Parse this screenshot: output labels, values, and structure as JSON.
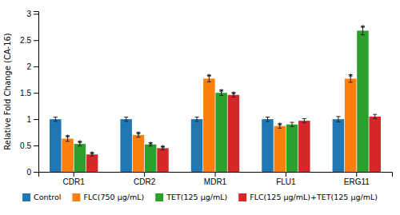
{
  "chart_data": {
    "type": "bar",
    "categories": [
      "CDR1",
      "CDR2",
      "MDR1",
      "FLU1",
      "ERG11"
    ],
    "series": [
      {
        "name": "Control",
        "values": [
          1.0,
          1.0,
          1.0,
          1.0,
          1.0
        ],
        "errors": [
          0.04,
          0.04,
          0.04,
          0.04,
          0.05
        ]
      },
      {
        "name": "FLC(750 μg/mL)",
        "values": [
          0.63,
          0.7,
          1.77,
          0.87,
          1.77
        ],
        "errors": [
          0.05,
          0.04,
          0.06,
          0.04,
          0.07
        ]
      },
      {
        "name": "TET(125 μg/mL)",
        "values": [
          0.53,
          0.52,
          1.5,
          0.9,
          2.68
        ],
        "errors": [
          0.04,
          0.03,
          0.05,
          0.04,
          0.08
        ]
      },
      {
        "name": "FLC(125 μg/mL)+TET(125 μg/mL)",
        "values": [
          0.33,
          0.45,
          1.46,
          0.97,
          1.05
        ],
        "errors": [
          0.03,
          0.03,
          0.04,
          0.04,
          0.04
        ]
      }
    ],
    "annotations": [
      {
        "text": "*",
        "series": "FLC(750 μg/mL)",
        "category": "CDR1"
      },
      {
        "text": "*",
        "series": "FLC(750 μg/mL)",
        "category": "CDR2"
      },
      {
        "text": "*",
        "series": "FLC(750 μg/mL)",
        "category": "MDR1"
      },
      {
        "text": "*",
        "series": "FLC(750 μg/mL)",
        "category": "FLU1"
      },
      {
        "text": "*",
        "series": "FLC(750 μg/mL)",
        "category": "ERG11"
      },
      {
        "text": "*",
        "series": "TET(125 μg/mL)",
        "category": "CDR1"
      },
      {
        "text": "*",
        "series": "TET(125 μg/mL)",
        "category": "CDR2"
      },
      {
        "text": "*",
        "series": "TET(125 μg/mL)",
        "category": "MDR1"
      },
      {
        "text": "*",
        "series": "TET(125 μg/mL)",
        "category": "ERG11"
      },
      {
        "text": "*",
        "series": "FLC(125 μg/mL)+TET(125 μg/mL)",
        "category": "CDR1"
      },
      {
        "text": "*",
        "series": "FLC(125 μg/mL)+TET(125 μg/mL)",
        "category": "CDR2"
      },
      {
        "text": "*",
        "series": "FLC(125 μg/mL)+TET(125 μg/mL)",
        "category": "MDR1"
      }
    ],
    "ylabel": "Relative Fold Change (CA-16)",
    "ylim": [
      0,
      3.05
    ],
    "yticks": [
      0,
      0.5,
      1.0,
      1.5,
      2.0,
      2.5,
      3.0
    ],
    "grid": false,
    "legend": "bottom"
  }
}
